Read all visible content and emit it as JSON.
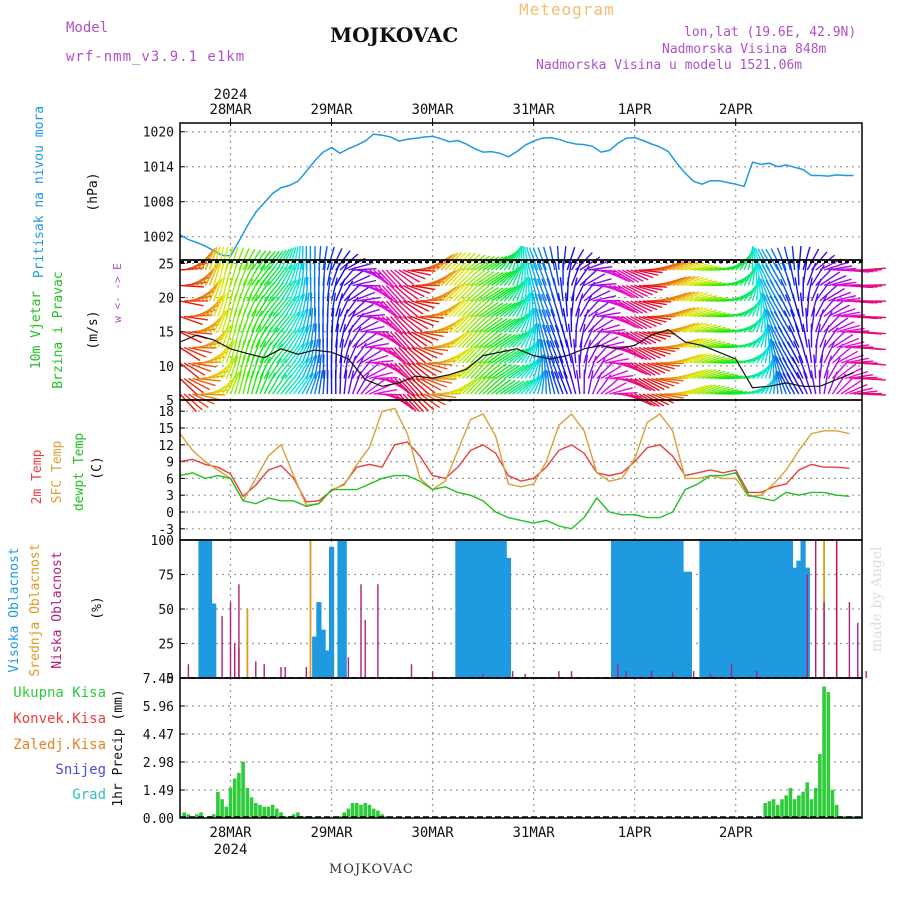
{
  "header": {
    "model_label": "Model",
    "model_name": "wrf-nmm_v3.9.1 e1km",
    "station": "MOJKOVAC",
    "chart_kind": "Meteogram",
    "lonlat": "lon,lat (19.6E, 42.9N)",
    "elev": "Nadmorska Visina 848m",
    "elev_model": "Nadmorska Visina u modelu 1521.06m",
    "footer": "MOJKOVAC",
    "credit": "made by Angel",
    "year_top": "2024",
    "year_bottom": "2024"
  },
  "colors": {
    "pressure": "#1f9ae0",
    "temp2m": "#e84040",
    "sfc": "#d7a23a",
    "dewpt": "#22c022",
    "high_cloud": "#1f9ae0",
    "mid_cloud": "#e09a20",
    "low_cloud": "#b0207a",
    "precip": "#2ecc3a",
    "grid": "#999999"
  },
  "chart_data": [
    {
      "type": "line",
      "panel": "pressure",
      "ylabel_left": "Pritisak na nivou mora",
      "ylabel": "(hPa)",
      "yticks": [
        1002,
        1008,
        1014,
        1020
      ],
      "ylim": [
        998,
        1021.5
      ],
      "x_days": [
        "28MAR",
        "29MAR",
        "30MAR",
        "31MAR",
        "1APR",
        "2APR"
      ],
      "x_hours_start": -12,
      "series": [
        {
          "color_key": "pressure",
          "x": [
            -12,
            -10,
            -8,
            -6,
            -4,
            -2,
            0,
            2,
            4,
            6,
            8,
            10,
            12,
            14,
            16,
            18,
            20,
            22,
            24,
            26,
            28,
            30,
            32,
            34,
            36,
            38,
            40,
            42,
            44,
            46,
            48,
            50,
            52,
            54,
            56,
            58,
            60,
            62,
            64,
            66,
            68,
            70,
            72,
            74,
            76,
            78,
            80,
            82,
            84,
            86,
            88,
            90,
            92,
            94,
            96,
            98,
            100,
            102,
            104,
            106,
            108,
            110,
            112,
            114,
            116,
            118,
            120,
            122,
            124,
            126,
            128,
            130,
            132,
            134,
            136,
            138,
            140,
            142,
            144,
            146,
            148
          ],
          "y": [
            1002.3,
            1001.5,
            1001.0,
            1000.4,
            999.6,
            998.8,
            998.7,
            1001.2,
            1003.9,
            1006.2,
            1007.8,
            1009.4,
            1010.4,
            1010.8,
            1011.5,
            1013.2,
            1015.0,
            1016.5,
            1017.3,
            1016.3,
            1017.1,
            1017.7,
            1018.4,
            1019.6,
            1019.4,
            1019.1,
            1018.4,
            1018.7,
            1018.9,
            1019.1,
            1019.2,
            1018.8,
            1018.3,
            1018.5,
            1017.9,
            1017.1,
            1016.5,
            1016.6,
            1016.3,
            1015.7,
            1016.6,
            1017.7,
            1018.4,
            1018.9,
            1019.0,
            1018.7,
            1018.2,
            1017.9,
            1017.8,
            1017.5,
            1016.5,
            1016.8,
            1018.0,
            1018.9,
            1019.0,
            1018.5,
            1017.9,
            1017.4,
            1016.6,
            1014.6,
            1012.9,
            1011.5,
            1011.0,
            1011.6,
            1011.6,
            1011.3,
            1011.0,
            1010.6,
            1014.8,
            1014.4,
            1014.6,
            1014.0,
            1014.3,
            1013.9,
            1013.5,
            1012.5,
            1012.5,
            1012.4,
            1012.6,
            1012.5,
            1012.5
          ]
        }
      ]
    },
    {
      "type": "line",
      "panel": "wind",
      "ylabel_left": "10m Vjetar Brzina i Pravac",
      "ylabel": "(m/s)",
      "compass": "w <- -> E",
      "yticks": [
        5,
        10,
        15,
        20,
        25
      ],
      "ylim": [
        5,
        25.5
      ],
      "series": [
        {
          "color_key": "dark",
          "x": [
            -12,
            -8,
            -4,
            0,
            4,
            8,
            12,
            16,
            20,
            24,
            28,
            32,
            36,
            40,
            44,
            48,
            52,
            56,
            60,
            64,
            68,
            72,
            76,
            80,
            84,
            88,
            92,
            96,
            100,
            104,
            108,
            112,
            116,
            120,
            124,
            128,
            132,
            136,
            140,
            144,
            148
          ],
          "y": [
            13.5,
            14.5,
            13.8,
            12.5,
            11.8,
            11.2,
            12.5,
            11.7,
            12.3,
            12.0,
            11.0,
            8.0,
            7.0,
            7.5,
            8.5,
            8.2,
            8.7,
            9.5,
            11.5,
            12.0,
            12.5,
            11.5,
            11.0,
            11.5,
            12.5,
            13.0,
            12.5,
            13.0,
            14.5,
            15.3,
            13.5,
            13.0,
            12.0,
            11.0,
            6.8,
            7.0,
            7.5,
            7.0,
            7.0,
            8.0,
            9.0
          ]
        }
      ]
    },
    {
      "type": "line",
      "panel": "temperature",
      "ylabel_left": "2m Temp",
      "ylabel_mid": "SFC Temp",
      "ylabel_right": "dewpt Temp",
      "ylabel": "(C)",
      "yticks": [
        -3,
        0,
        3,
        6,
        9,
        12,
        15,
        18
      ],
      "ylim": [
        -5,
        20
      ],
      "series": [
        {
          "color_key": "temp2m",
          "x": [
            -12,
            -9,
            -6,
            -3,
            0,
            3,
            6,
            9,
            12,
            15,
            18,
            21,
            24,
            27,
            30,
            33,
            36,
            39,
            42,
            45,
            48,
            51,
            54,
            57,
            60,
            63,
            66,
            69,
            72,
            75,
            78,
            81,
            84,
            87,
            90,
            93,
            96,
            99,
            102,
            105,
            108,
            111,
            114,
            117,
            120,
            123,
            126,
            129,
            132,
            135,
            138,
            141,
            144,
            147
          ],
          "y": [
            9.0,
            9.4,
            8.5,
            8.0,
            6.8,
            2.8,
            4.8,
            7.5,
            8.3,
            6.0,
            1.8,
            2.0,
            3.8,
            5.0,
            8.0,
            8.5,
            8.0,
            12.0,
            12.5,
            10.0,
            6.5,
            6.0,
            8.0,
            11.0,
            12.0,
            10.5,
            6.5,
            5.5,
            6.0,
            8.0,
            11.0,
            12.0,
            10.5,
            7.0,
            6.5,
            7.0,
            9.0,
            11.5,
            12.0,
            10.0,
            6.5,
            7.0,
            7.5,
            7.0,
            7.5,
            3.5,
            3.5,
            4.5,
            5.0,
            7.5,
            8.5,
            8.0,
            8.0,
            7.8
          ]
        },
        {
          "color_key": "sfc",
          "x": [
            -12,
            -9,
            -6,
            -3,
            0,
            3,
            6,
            9,
            12,
            15,
            18,
            21,
            24,
            27,
            30,
            33,
            36,
            39,
            42,
            45,
            48,
            51,
            54,
            57,
            60,
            63,
            66,
            69,
            72,
            75,
            78,
            81,
            84,
            87,
            90,
            93,
            96,
            99,
            102,
            105,
            108,
            111,
            114,
            117,
            120,
            123,
            126,
            129,
            132,
            135,
            138,
            141,
            144,
            147
          ],
          "y": [
            14.0,
            11.0,
            9.0,
            7.5,
            6.0,
            2.0,
            6.0,
            10.0,
            12.0,
            6.5,
            1.2,
            1.5,
            4.0,
            4.8,
            8.5,
            11.5,
            18.0,
            18.5,
            14.0,
            6.0,
            4.0,
            5.5,
            11.0,
            16.5,
            17.5,
            13.5,
            5.0,
            4.5,
            5.0,
            9.0,
            15.5,
            17.5,
            14.5,
            7.0,
            5.5,
            6.0,
            9.5,
            16.0,
            17.5,
            14.5,
            6.0,
            6.0,
            6.5,
            6.0,
            6.0,
            2.8,
            3.0,
            5.0,
            7.5,
            11.0,
            14.0,
            14.5,
            14.5,
            14.0
          ]
        },
        {
          "color_key": "dewpt",
          "x": [
            -12,
            -9,
            -6,
            -3,
            0,
            3,
            6,
            9,
            12,
            15,
            18,
            21,
            24,
            27,
            30,
            33,
            36,
            39,
            42,
            45,
            48,
            51,
            54,
            57,
            60,
            63,
            66,
            69,
            72,
            75,
            78,
            81,
            84,
            87,
            90,
            93,
            96,
            99,
            102,
            105,
            108,
            111,
            114,
            117,
            120,
            123,
            126,
            129,
            132,
            135,
            138,
            141,
            144,
            147
          ],
          "y": [
            6.5,
            7.0,
            6.0,
            6.5,
            6.0,
            2.0,
            1.5,
            2.5,
            2.0,
            2.0,
            1.0,
            1.5,
            4.0,
            4.0,
            4.0,
            5.0,
            6.0,
            6.5,
            6.5,
            5.5,
            4.0,
            4.5,
            3.5,
            3.0,
            2.0,
            0.0,
            -1.0,
            -1.5,
            -2.0,
            -1.5,
            -2.5,
            -3.0,
            -1.0,
            2.5,
            0.0,
            -0.5,
            -0.5,
            -1.0,
            -1.0,
            0.0,
            4.0,
            5.0,
            6.5,
            6.5,
            7.0,
            3.0,
            2.5,
            2.0,
            3.5,
            3.0,
            3.5,
            3.5,
            3.0,
            2.8
          ]
        }
      ]
    },
    {
      "type": "bar",
      "panel": "clouds",
      "ylabel_left": "Visoka Oblacnost",
      "ylabel_mid": "Srednja Oblacnost",
      "ylabel_right": "Niska Oblacnost",
      "ylabel": "(%)",
      "yticks": [
        0,
        25,
        50,
        75,
        100
      ],
      "ylim": [
        0,
        100
      ],
      "series": [
        {
          "color_key": "high_cloud",
          "x": [
            -7,
            -6,
            -5,
            -4,
            20,
            21,
            22,
            23,
            24,
            26,
            27,
            54,
            55,
            56,
            57,
            58,
            59,
            60,
            61,
            62,
            63,
            64,
            65,
            66,
            91,
            92,
            93,
            94,
            95,
            96,
            97,
            98,
            99,
            100,
            101,
            102,
            103,
            104,
            105,
            106,
            107,
            108,
            109,
            112,
            113,
            114,
            115,
            116,
            117,
            118,
            119,
            120,
            121,
            122,
            123,
            124,
            125,
            126,
            127,
            128,
            129,
            130,
            131,
            132,
            133,
            134,
            135,
            136,
            137
          ],
          "values": [
            100,
            100,
            100,
            54,
            30,
            55,
            35,
            20,
            95,
            100,
            100,
            100,
            100,
            100,
            100,
            100,
            100,
            100,
            100,
            100,
            100,
            100,
            100,
            87,
            100,
            100,
            100,
            100,
            100,
            100,
            100,
            100,
            100,
            100,
            100,
            100,
            100,
            100,
            100,
            100,
            100,
            77,
            77,
            100,
            100,
            100,
            100,
            100,
            100,
            100,
            100,
            100,
            100,
            100,
            100,
            100,
            100,
            100,
            100,
            100,
            100,
            100,
            100,
            100,
            100,
            80,
            85,
            100,
            80
          ]
        },
        {
          "color_key": "mid_cloud",
          "x": [
            2,
            4,
            19,
            141,
            144
          ],
          "values": [
            22,
            50,
            100,
            100,
            100
          ]
        },
        {
          "color_key": "low_cloud",
          "x": [
            -10,
            -2,
            0,
            1,
            2,
            6,
            8,
            12,
            13,
            18,
            28,
            31,
            32,
            35,
            43,
            48,
            60,
            67,
            70,
            78,
            81,
            92,
            94,
            100,
            105,
            110,
            114,
            119,
            125,
            137,
            139,
            141,
            144,
            147,
            149,
            151
          ],
          "values": [
            10,
            45,
            55,
            25,
            68,
            12,
            10,
            8,
            8,
            8,
            15,
            68,
            42,
            68,
            10,
            5,
            3,
            5,
            3,
            5,
            5,
            10,
            5,
            5,
            4,
            5,
            3,
            10,
            5,
            75,
            100,
            55,
            100,
            55,
            40,
            5
          ]
        }
      ]
    },
    {
      "type": "bar",
      "panel": "precip",
      "legend": [
        "Ukupna Kisa",
        "Konvek.Kisa",
        "Zaledj.Kisa",
        "Snijeg",
        "Grad"
      ],
      "ylabel": "1hr Precip (mm)",
      "yticks": [
        0,
        1.49,
        2.98,
        4.47,
        5.96,
        7.45
      ],
      "ylim": [
        0,
        7.45
      ],
      "x_days_bottom": [
        "28MAR",
        "29MAR",
        "30MAR",
        "31MAR",
        "1APR",
        "2APR"
      ],
      "series": [
        {
          "color_key": "precip",
          "x": [
            -11,
            -10,
            -8,
            -7,
            -5,
            -4,
            -3,
            -2,
            -1,
            0,
            1,
            2,
            3,
            4,
            5,
            6,
            7,
            8,
            9,
            10,
            11,
            12,
            13,
            14,
            15,
            16,
            17,
            18,
            19,
            26,
            27,
            28,
            29,
            30,
            31,
            32,
            33,
            34,
            35,
            36,
            37,
            127,
            128,
            129,
            130,
            131,
            132,
            133,
            134,
            135,
            136,
            137,
            138,
            139,
            140,
            141,
            142,
            143,
            144,
            145,
            146,
            147,
            148
          ],
          "values": [
            0.3,
            0.2,
            0.2,
            0.3,
            0.1,
            0.2,
            1.4,
            1.0,
            0.6,
            1.6,
            2.1,
            2.4,
            3.0,
            1.6,
            1.1,
            0.8,
            0.7,
            0.6,
            0.6,
            0.7,
            0.5,
            0.3,
            0.1,
            0.1,
            0.2,
            0.3,
            0.1,
            0.1,
            0.1,
            0.1,
            0.3,
            0.5,
            0.8,
            0.8,
            0.7,
            0.8,
            0.7,
            0.5,
            0.4,
            0.2,
            0.1,
            0.8,
            0.9,
            1.0,
            0.7,
            1.0,
            1.2,
            1.6,
            1.0,
            1.2,
            1.4,
            1.9,
            1.0,
            1.6,
            3.4,
            7.0,
            6.7,
            1.5,
            0.7,
            0.1,
            0.1,
            0.1,
            0.1
          ]
        }
      ]
    }
  ]
}
